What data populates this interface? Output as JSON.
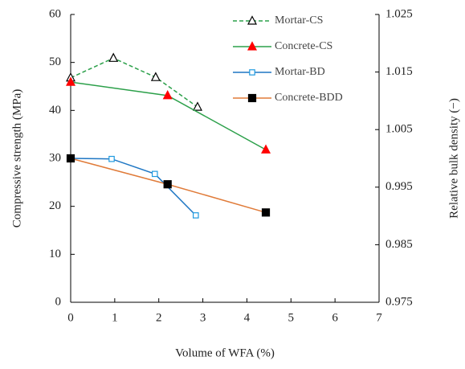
{
  "chart_data": {
    "type": "line",
    "xlabel": "Volume of WFA (%)",
    "ylabel": "Compressive strength (MPa)",
    "y2label": "Relative bulk density (−)",
    "xlim": [
      0,
      7
    ],
    "xticks": [
      0,
      1,
      2,
      3,
      4,
      5,
      6,
      7
    ],
    "ylim": [
      0,
      60
    ],
    "yticks": [
      0,
      10,
      20,
      30,
      40,
      50,
      60
    ],
    "y2lim": [
      0.975,
      1.025
    ],
    "y2ticks": [
      0.975,
      0.985,
      0.995,
      1.005,
      1.015,
      1.025
    ],
    "legend": "upper right",
    "series": [
      {
        "name": "Mortar-CS",
        "color": "#2ca04a",
        "marker": "triangle-open",
        "marker_color": "#000000",
        "dashed": true,
        "x": [
          0,
          0.97,
          1.93,
          2.88
        ],
        "values": [
          46.8,
          50.9,
          46.9,
          40.7
        ]
      },
      {
        "name": "Concrete-CS",
        "color": "#2ca04a",
        "marker": "triangle",
        "marker_color": "#ff0000",
        "dashed": false,
        "x": [
          0,
          2.2,
          4.43
        ],
        "values": [
          45.9,
          43.1,
          31.8
        ]
      },
      {
        "name": "Mortar-BD",
        "color": "#1f77c4",
        "marker": "square-open",
        "marker_color": "#1f9ae0",
        "dashed": false,
        "axis": "y2",
        "x": [
          0,
          0.93,
          1.91,
          2.84
        ],
        "values": [
          1.0,
          0.9999,
          0.9973,
          0.9901
        ]
      },
      {
        "name": "Concrete-BDD",
        "color": "#e07b39",
        "marker": "square",
        "marker_color": "#000000",
        "dashed": false,
        "axis": "y2",
        "x": [
          0,
          2.2,
          4.43
        ],
        "values": [
          1.0,
          0.9955,
          0.9906
        ]
      }
    ]
  }
}
